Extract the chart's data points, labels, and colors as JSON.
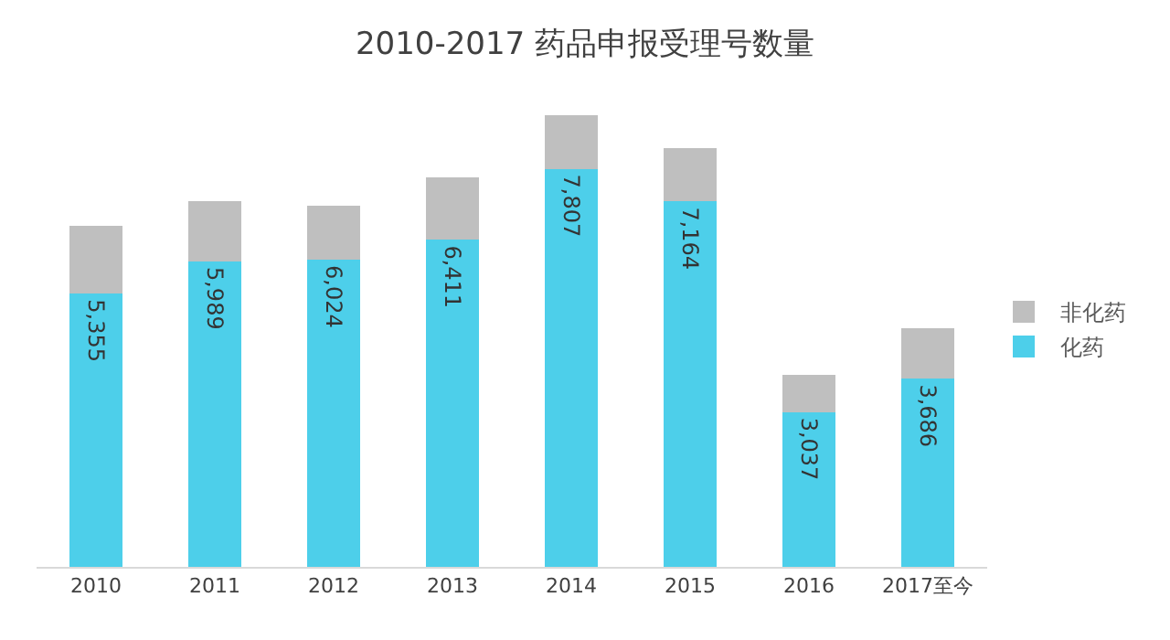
{
  "chart_data": {
    "type": "bar",
    "title": "2010-2017 药品申报受理号数量",
    "stacked": true,
    "legend": "right",
    "categories": [
      "2010",
      "2011",
      "2012",
      "2013",
      "2014",
      "2015",
      "2016",
      "2017至今"
    ],
    "series": [
      {
        "name": "化药",
        "color": "#4dcfea",
        "values": [
          5355,
          5989,
          6024,
          6411,
          7807,
          7164,
          3037,
          3686
        ],
        "value_labels": [
          "5,355",
          "5,989",
          "6,024",
          "6,411",
          "7,807",
          "7,164",
          "3,037",
          "3,686"
        ]
      },
      {
        "name": "非化药",
        "color": "#bfbfbf",
        "values": [
          1340,
          1190,
          1060,
          1220,
          1050,
          1040,
          720,
          1000
        ]
      }
    ]
  }
}
